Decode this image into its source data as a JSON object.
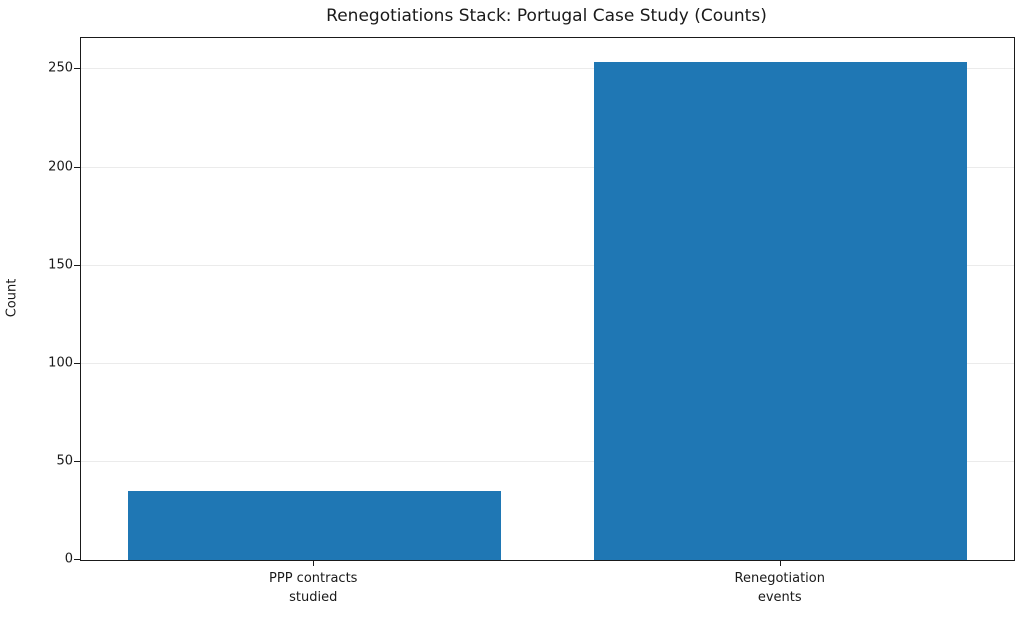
{
  "chart_data": {
    "type": "bar",
    "title": "Renegotiations Stack: Portugal Case Study (Counts)",
    "ylabel": "Count",
    "xlabel": "",
    "categories": [
      "PPP contracts\nstudied",
      "Renegotiation\nevents"
    ],
    "values": [
      35,
      254
    ],
    "yticks": [
      0,
      50,
      100,
      150,
      200,
      250
    ],
    "ylim": [
      0,
      266
    ],
    "grid": true,
    "legend": "none",
    "bar_color": "#1f77b4",
    "grid_color": "#ebebeb",
    "axis_color": "#1a1a1a",
    "text_color": "#1a1a1a"
  }
}
